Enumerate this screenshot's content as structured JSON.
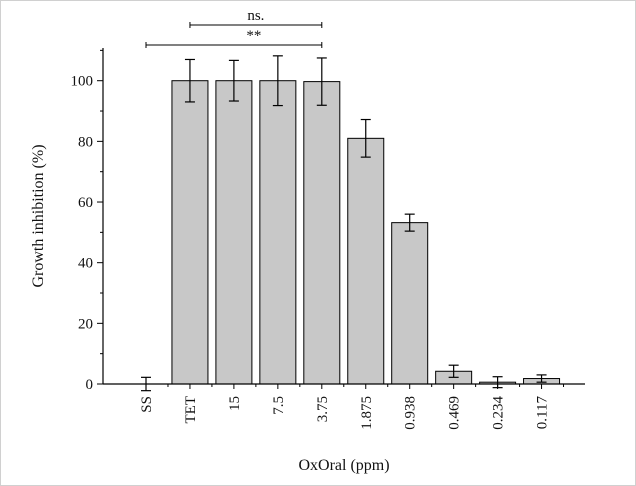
{
  "chart_data": {
    "type": "bar",
    "title": "",
    "xlabel": "OxOral (ppm)",
    "ylabel": "Growth inhibition (%)",
    "ylim": [
      0,
      110
    ],
    "yticks": [
      0,
      20,
      40,
      60,
      80,
      100
    ],
    "ytick_labels": [
      "0",
      "20",
      "40",
      "60",
      "80",
      "100"
    ],
    "categories": [
      "SS",
      "TET",
      "15",
      "7.5",
      "3.75",
      "1.875",
      "0.938",
      "0.469",
      "0.234",
      "0.117"
    ],
    "values": [
      0,
      100,
      100,
      100,
      99.7,
      81,
      53.2,
      4.2,
      0.6,
      1.8
    ],
    "errors": [
      2.2,
      7,
      6.7,
      8.2,
      7.8,
      6.2,
      2.8,
      2,
      1.8,
      1.2
    ],
    "colors": {
      "bar_fill": "#c8c8c8",
      "bar_stroke": "#000000"
    },
    "annotations": [
      {
        "label": "ns.",
        "from": "TET",
        "to": "3.75",
        "level": "upper"
      },
      {
        "label": "**",
        "from": "SS",
        "to": "3.75",
        "level": "lower"
      }
    ]
  }
}
